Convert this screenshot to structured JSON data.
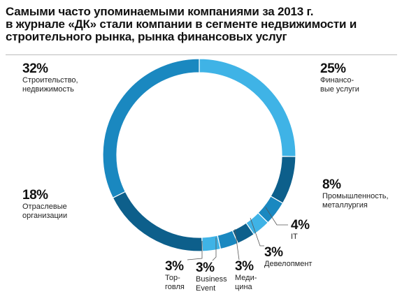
{
  "title_lines": [
    "Самыми часто упоминаемыми компаниями за 2013 г.",
    "в журнале «ДК» стали компании в сегменте недвижимости и",
    "строительного рынка, рынка финансовых услуг"
  ],
  "colors": {
    "mid": "#1a88c0",
    "light": "#3fb3e6",
    "dark": "#0d5f8b"
  },
  "chart_data": {
    "type": "pie",
    "style": "donut",
    "title": "Самыми часто упоминаемыми компаниями за 2013 г. в журнале «ДК» стали компании в сегменте недвижимости и строительного рынка, рынка финансовых услуг",
    "unit": "%",
    "slices": [
      {
        "key": "finance",
        "value": 25,
        "pct_label": "25%",
        "label_lines": [
          "Финансо-",
          "вые услуги"
        ],
        "color": "#3fb3e6"
      },
      {
        "key": "industry",
        "value": 8,
        "pct_label": "8%",
        "label_lines": [
          "Промышленность,",
          "металлургия"
        ],
        "color": "#0d5f8b"
      },
      {
        "key": "it",
        "value": 4,
        "pct_label": "4%",
        "label_lines": [
          "IT"
        ],
        "color": "#1a88c0"
      },
      {
        "key": "development",
        "value": 3,
        "pct_label": "3%",
        "label_lines": [
          "Девелопмент"
        ],
        "color": "#3fb3e6"
      },
      {
        "key": "medicine",
        "value": 3,
        "pct_label": "3%",
        "label_lines": [
          "Меди-",
          "цина"
        ],
        "color": "#0d5f8b"
      },
      {
        "key": "business_event",
        "value": 3,
        "pct_label": "3%",
        "label_lines": [
          "Business",
          "Event"
        ],
        "color": "#1a88c0"
      },
      {
        "key": "trade",
        "value": 3,
        "pct_label": "3%",
        "label_lines": [
          "Тор-",
          "говля"
        ],
        "color": "#3fb3e6"
      },
      {
        "key": "industry_orgs",
        "value": 18,
        "pct_label": "18%",
        "label_lines": [
          "Отраслевые",
          "организации"
        ],
        "color": "#0d5f8b"
      },
      {
        "key": "construction",
        "value": 32,
        "pct_label": "32%",
        "label_lines": [
          "Строительство,",
          "недвижимость"
        ],
        "color": "#1a88c0"
      }
    ]
  }
}
